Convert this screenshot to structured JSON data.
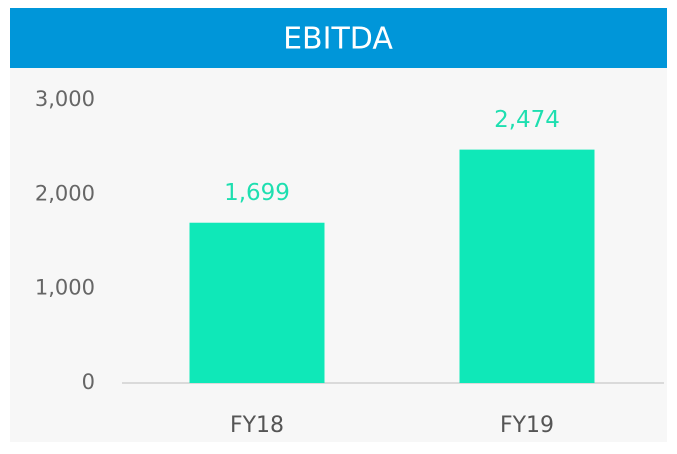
{
  "chart_data": {
    "type": "bar",
    "title": "EBITDA",
    "categories": [
      "FY18",
      "FY19"
    ],
    "values": [
      1699,
      2474
    ],
    "value_labels": [
      "1,699",
      "2,474"
    ],
    "color": "#0fe8b8",
    "label_color": "#1edfb0",
    "header_color": "#0096d9",
    "ylim": [
      0,
      3000
    ],
    "yticks": [
      0,
      {
        "value": 1000,
        "label": "1,000"
      },
      {
        "value": 2000,
        "label": "2,000"
      },
      {
        "value": 3000,
        "label": "3,000"
      }
    ],
    "grid": false
  }
}
